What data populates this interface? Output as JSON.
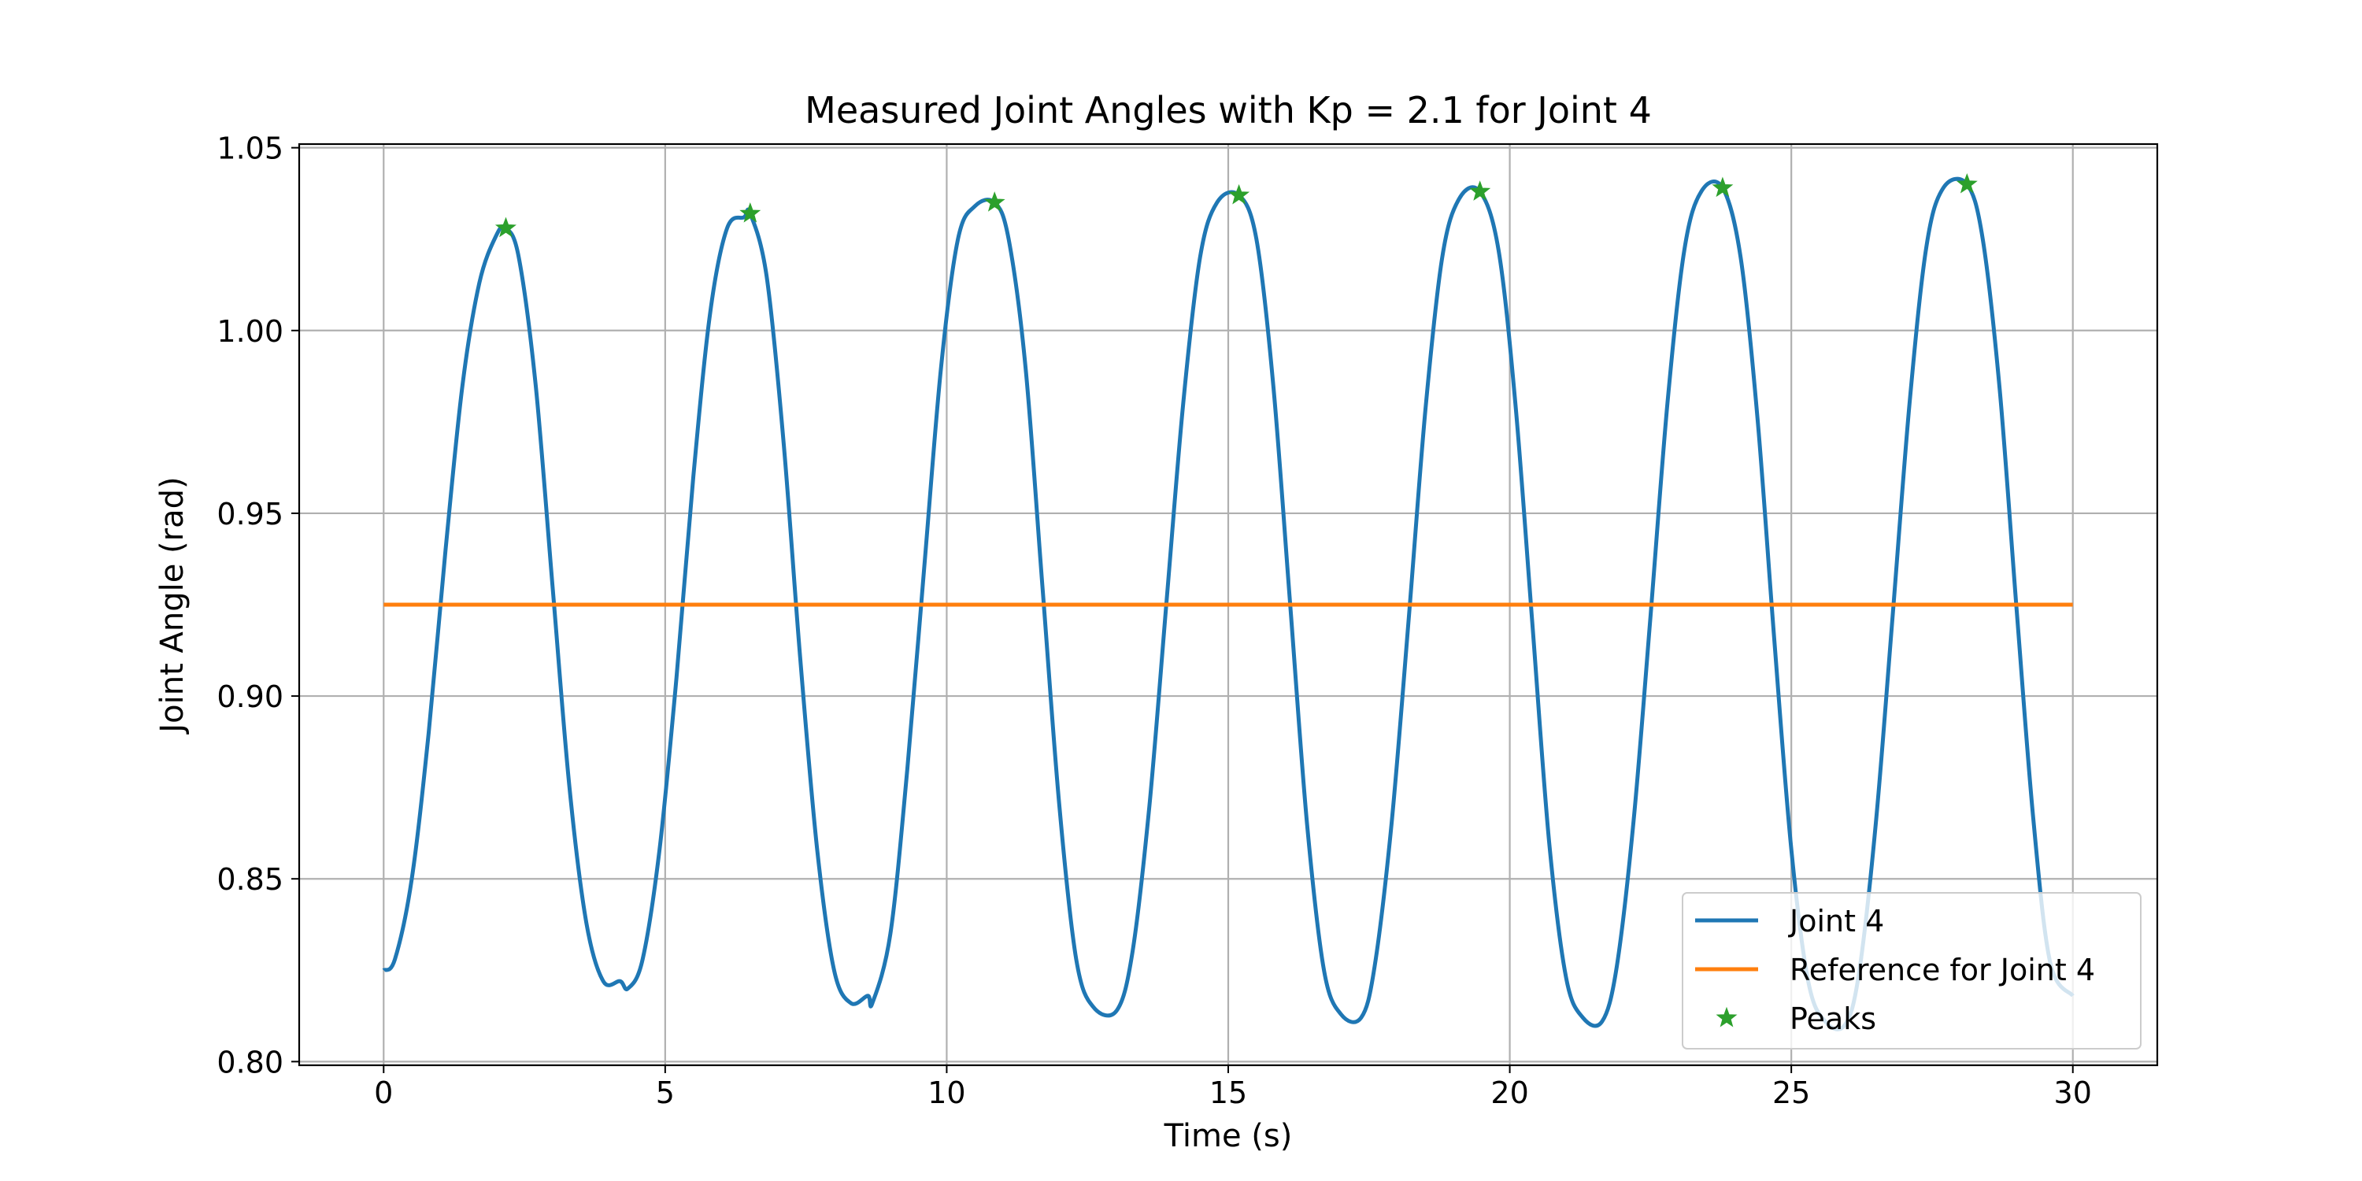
{
  "chart_data": {
    "type": "line",
    "title": "Measured Joint Angles with Kp = 2.1 for Joint 4",
    "xlabel": "Time (s)",
    "ylabel": "Joint Angle (rad)",
    "xlim": [
      -1.5,
      31.5
    ],
    "ylim": [
      0.799,
      1.051
    ],
    "xticks": [
      0,
      5,
      10,
      15,
      20,
      25,
      30
    ],
    "xtick_labels": [
      "0",
      "5",
      "10",
      "15",
      "20",
      "25",
      "30"
    ],
    "yticks": [
      0.8,
      0.85,
      0.9,
      0.95,
      1.0,
      1.05
    ],
    "ytick_labels": [
      "0.80",
      "0.85",
      "0.90",
      "0.95",
      "1.00",
      "1.05"
    ],
    "grid": true,
    "legend_position": "lower-right",
    "series": [
      {
        "name": "Joint 4",
        "kind": "line",
        "color": "#1f77b4",
        "x": [
          0,
          0.2,
          0.5,
          0.8,
          1.1,
          1.4,
          1.7,
          2.0,
          2.17,
          2.4,
          2.7,
          3.0,
          3.3,
          3.6,
          3.9,
          4.2,
          4.34,
          4.6,
          4.9,
          5.2,
          5.5,
          5.8,
          6.1,
          6.4,
          6.51,
          6.8,
          7.1,
          7.4,
          7.7,
          8.0,
          8.3,
          8.6,
          8.68,
          9.0,
          9.3,
          9.6,
          9.9,
          10.2,
          10.5,
          10.85,
          11.1,
          11.4,
          11.7,
          12.0,
          12.3,
          12.6,
          13.02,
          13.3,
          13.6,
          13.9,
          14.2,
          14.5,
          14.8,
          15.19,
          15.5,
          15.8,
          16.1,
          16.4,
          16.7,
          17.0,
          17.36,
          17.6,
          17.9,
          18.2,
          18.5,
          18.8,
          19.1,
          19.47,
          19.8,
          20.1,
          20.4,
          20.7,
          21.0,
          21.3,
          21.64,
          21.9,
          22.2,
          22.5,
          22.8,
          23.1,
          23.4,
          23.78,
          24.1,
          24.4,
          24.7,
          25.0,
          25.3,
          25.6,
          25.95,
          26.2,
          26.5,
          26.8,
          27.1,
          27.4,
          27.7,
          28.12,
          28.4,
          28.7,
          29.0,
          29.3,
          29.6,
          30.0
        ],
        "y": [
          0.825,
          0.828,
          0.85,
          0.89,
          0.94,
          0.985,
          1.013,
          1.026,
          1.028,
          1.02,
          0.985,
          0.93,
          0.875,
          0.838,
          0.822,
          0.822,
          0.82,
          0.828,
          0.858,
          0.905,
          0.96,
          1.005,
          1.028,
          1.031,
          1.032,
          1.015,
          0.97,
          0.91,
          0.858,
          0.825,
          0.816,
          0.818,
          0.816,
          0.835,
          0.88,
          0.935,
          0.99,
          1.025,
          1.034,
          1.035,
          1.025,
          0.99,
          0.93,
          0.87,
          0.828,
          0.815,
          0.814,
          0.83,
          0.87,
          0.925,
          0.98,
          1.02,
          1.035,
          1.037,
          1.025,
          0.985,
          0.925,
          0.865,
          0.825,
          0.813,
          0.812,
          0.826,
          0.865,
          0.92,
          0.978,
          1.02,
          1.036,
          1.038,
          1.022,
          0.98,
          0.92,
          0.86,
          0.823,
          0.812,
          0.811,
          0.826,
          0.866,
          0.922,
          0.98,
          1.022,
          1.038,
          1.039,
          1.02,
          0.976,
          0.915,
          0.858,
          0.822,
          0.811,
          0.81,
          0.824,
          0.865,
          0.922,
          0.98,
          1.023,
          1.039,
          1.04,
          1.025,
          0.984,
          0.924,
          0.866,
          0.827,
          0.818
        ]
      },
      {
        "name": "Reference for Joint 4",
        "kind": "line",
        "color": "#ff7f0e",
        "x": [
          0,
          30
        ],
        "y": [
          0.925,
          0.925
        ]
      },
      {
        "name": "Peaks",
        "kind": "scatter",
        "marker": "star",
        "color": "#2ca02c",
        "x": [
          2.17,
          6.51,
          10.85,
          15.19,
          19.47,
          23.78,
          28.12
        ],
        "y": [
          1.028,
          1.032,
          1.035,
          1.037,
          1.038,
          1.039,
          1.04
        ]
      }
    ]
  }
}
